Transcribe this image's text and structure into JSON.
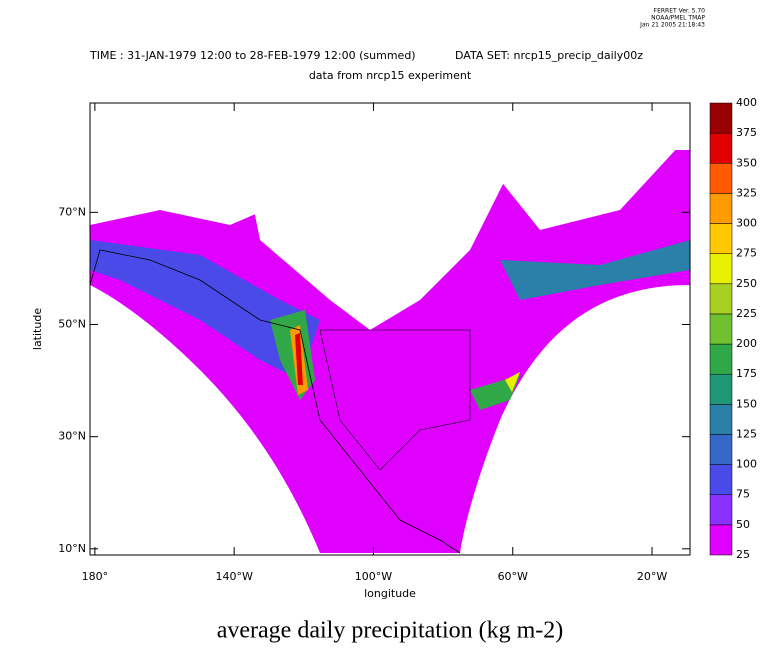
{
  "header": {
    "stamp": [
      "FERRET Ver. 5.70",
      "NOAA/PMEL TMAP",
      "Jan 21 2005 21:18:43"
    ],
    "time": "TIME : 31-JAN-1979 12:00 to 28-FEB-1979 12:00 (summed)",
    "dataset": "DATA SET: nrcp15_precip_daily00z",
    "subtitle": "data from nrcp15 experiment"
  },
  "map": {
    "xlabel": "longitude",
    "ylabel": "latitude",
    "xlim": [
      -181.4,
      -9.1
    ],
    "ylim": [
      8.9,
      89.5
    ],
    "xticks": [
      {
        "value": -180,
        "label": "180°"
      },
      {
        "value": -140,
        "label": "140°W"
      },
      {
        "value": -100,
        "label": "100°W"
      },
      {
        "value": -60,
        "label": "60°W"
      },
      {
        "value": -20,
        "label": "20°W"
      }
    ],
    "yticks": [
      {
        "value": 10,
        "label": "10°N"
      },
      {
        "value": 30,
        "label": "30°N"
      },
      {
        "value": 50,
        "label": "50°N"
      },
      {
        "value": 70,
        "label": "70°N"
      }
    ]
  },
  "colorbar": {
    "levels": [
      25,
      50,
      75,
      100,
      125,
      150,
      175,
      200,
      225,
      250,
      275,
      300,
      325,
      350,
      375,
      400
    ],
    "colors": [
      "#e000ff",
      "#8a30ff",
      "#4a4ae8",
      "#3568c8",
      "#2a80a8",
      "#1f9878",
      "#30a848",
      "#70c030",
      "#a8d020",
      "#e8f000",
      "#ffc800",
      "#ff9a00",
      "#ff5a00",
      "#e00000",
      "#9a0000"
    ]
  },
  "footer": {
    "title": "average daily precipitation (kg m-2)"
  }
}
